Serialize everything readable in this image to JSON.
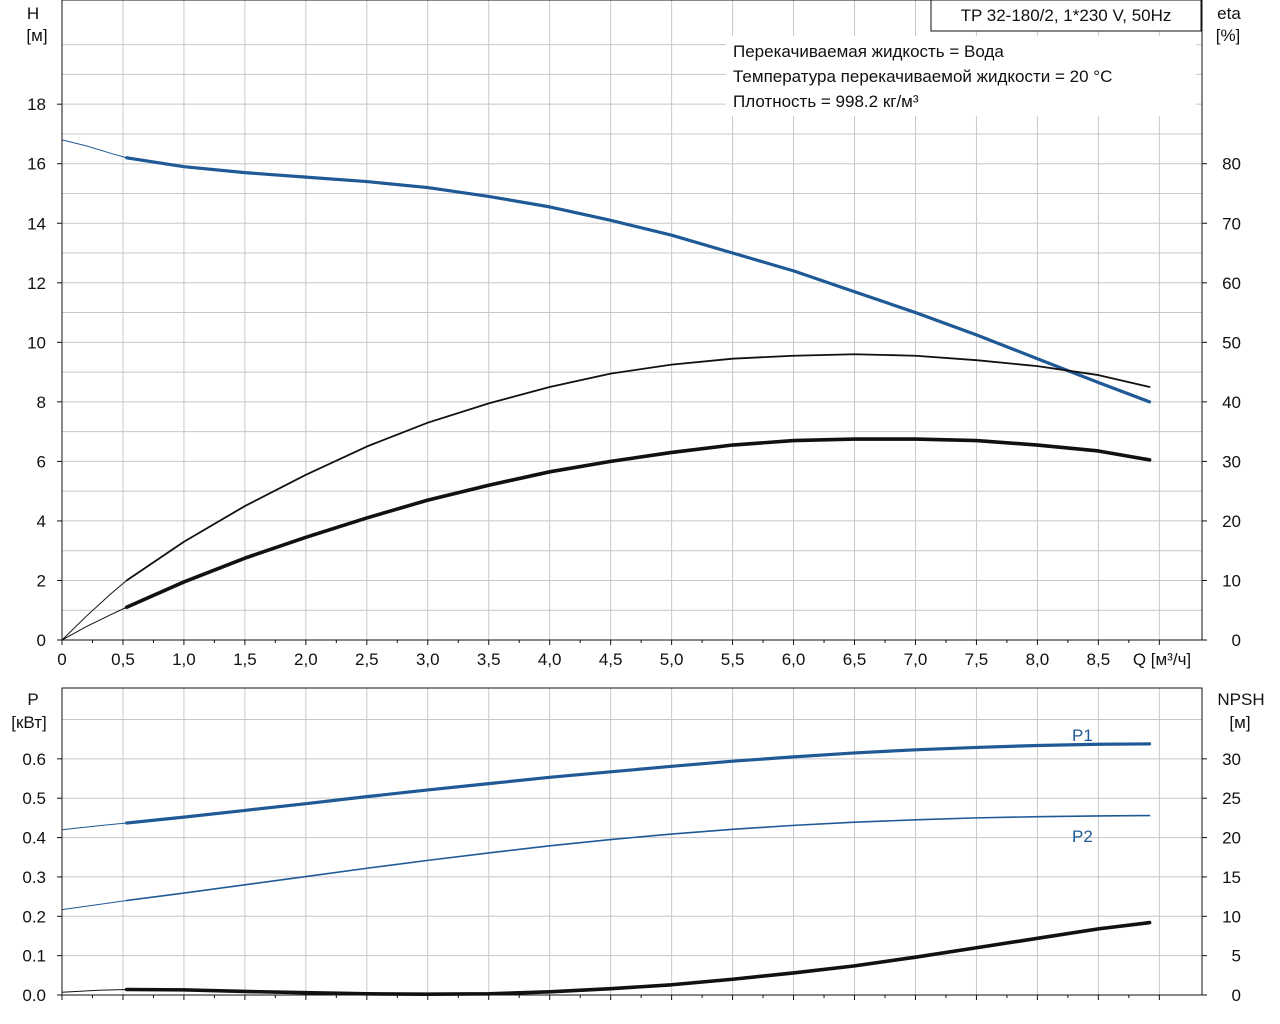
{
  "header": {
    "model": "TP 32-180/2, 1*230 V, 50Hz",
    "notes": [
      "Перекачиваемая жидкость = Вода",
      "Температура перекачиваемой жидкости = 20 °C",
      "Плотность = 998.2 кг/м³"
    ]
  },
  "chart_data": [
    {
      "type": "line",
      "panel": "top",
      "xlabel": "Q [м³/ч]",
      "ylabel_left": [
        "H",
        "[м]"
      ],
      "ylabel_right": [
        "eta",
        "[%]"
      ],
      "xlim": [
        0,
        9.35
      ],
      "ylim_left": [
        0,
        21.5
      ],
      "ylim_right": [
        0,
        107.5
      ],
      "x_ticks": [
        0,
        0.5,
        1,
        1.5,
        2,
        2.5,
        3,
        3.5,
        4,
        4.5,
        5,
        5.5,
        6,
        6.5,
        7,
        7.5,
        8,
        8.5
      ],
      "x_tick_labels": [
        "0",
        "0,5",
        "1,0",
        "1,5",
        "2,0",
        "2,5",
        "3,0",
        "3,5",
        "4,0",
        "4,5",
        "5,0",
        "5,5",
        "6,0",
        "6,5",
        "7,0",
        "7,5",
        "8,0",
        "8,5"
      ],
      "y_left_ticks": [
        0,
        2,
        4,
        6,
        8,
        10,
        12,
        14,
        16,
        18
      ],
      "y_right_ticks": [
        0,
        10,
        20,
        30,
        40,
        50,
        60,
        70,
        80
      ],
      "grid": true,
      "series": [
        {
          "axis": "left",
          "color": "#1f5a96",
          "width": 3.2,
          "x": [
            0.53,
            1,
            1.5,
            2,
            2.5,
            3,
            3.5,
            4,
            4.5,
            5,
            5.5,
            6,
            6.5,
            7,
            7.5,
            8,
            8.5,
            8.92
          ],
          "y": [
            16.2,
            15.9,
            15.7,
            15.55,
            15.4,
            15.2,
            14.9,
            14.55,
            14.1,
            13.6,
            13.0,
            12.4,
            11.7,
            11.0,
            10.25,
            9.45,
            8.65,
            8.0
          ],
          "extension": {
            "x": [
              0,
              0.2,
              0.4,
              0.53
            ],
            "y": [
              16.8,
              16.6,
              16.35,
              16.2
            ]
          }
        },
        {
          "axis": "left",
          "color": "#111111",
          "width": 1.8,
          "x": [
            0.53,
            1,
            1.5,
            2,
            2.5,
            3,
            3.5,
            4,
            4.5,
            5,
            5.5,
            6,
            6.5,
            7,
            7.5,
            8,
            8.5,
            8.92
          ],
          "y": [
            2.0,
            3.3,
            4.5,
            5.55,
            6.5,
            7.3,
            7.95,
            8.5,
            8.95,
            9.25,
            9.45,
            9.55,
            9.6,
            9.55,
            9.4,
            9.2,
            8.9,
            8.5
          ],
          "extension": {
            "x": [
              0,
              0.2,
              0.4,
              0.53
            ],
            "y": [
              0,
              0.8,
              1.55,
              2.0
            ]
          }
        },
        {
          "axis": "left",
          "color": "#111111",
          "width": 3.6,
          "x": [
            0.53,
            1,
            1.5,
            2,
            2.5,
            3,
            3.5,
            4,
            4.5,
            5,
            5.5,
            6,
            6.5,
            7,
            7.5,
            8,
            8.5,
            8.92
          ],
          "y": [
            1.1,
            1.95,
            2.75,
            3.45,
            4.1,
            4.7,
            5.2,
            5.65,
            6.0,
            6.3,
            6.55,
            6.7,
            6.75,
            6.75,
            6.7,
            6.55,
            6.35,
            6.05
          ],
          "extension": {
            "x": [
              0,
              0.2,
              0.4,
              0.53
            ],
            "y": [
              0,
              0.45,
              0.85,
              1.1
            ]
          }
        }
      ]
    },
    {
      "type": "line",
      "panel": "bottom",
      "ylabel_left": [
        "P",
        "[кВт]"
      ],
      "ylabel_right": [
        "NPSH",
        "[м]"
      ],
      "xlim": [
        0,
        9.35
      ],
      "ylim_left": [
        0,
        0.78
      ],
      "ylim_right": [
        0,
        39
      ],
      "x_ticks": [
        0,
        0.5,
        1,
        1.5,
        2,
        2.5,
        3,
        3.5,
        4,
        4.5,
        5,
        5.5,
        6,
        6.5,
        7,
        7.5,
        8,
        8.5
      ],
      "y_left_ticks": [
        0,
        0.1,
        0.2,
        0.3,
        0.4,
        0.5,
        0.6
      ],
      "y_left_tick_labels": [
        "0.0",
        "0.1",
        "0.2",
        "0.3",
        "0.4",
        "0.5",
        "0.6"
      ],
      "y_right_ticks": [
        0,
        5,
        10,
        15,
        20,
        25,
        30
      ],
      "grid": true,
      "series": [
        {
          "name": "P1",
          "axis": "left",
          "color": "#1f5a96",
          "width": 3.2,
          "x": [
            0.53,
            1,
            1.5,
            2,
            2.5,
            3,
            3.5,
            4,
            4.5,
            5,
            5.5,
            6,
            6.5,
            7,
            7.5,
            8,
            8.5,
            8.92
          ],
          "y": [
            0.437,
            0.452,
            0.469,
            0.486,
            0.504,
            0.521,
            0.537,
            0.553,
            0.567,
            0.581,
            0.594,
            0.605,
            0.615,
            0.623,
            0.629,
            0.634,
            0.637,
            0.638
          ],
          "extension": {
            "x": [
              0,
              0.3,
              0.53
            ],
            "y": [
              0.42,
              0.43,
              0.437
            ]
          }
        },
        {
          "name": "P2",
          "axis": "left",
          "color": "#1f5a96",
          "width": 1.6,
          "x": [
            0.53,
            1,
            1.5,
            2,
            2.5,
            3,
            3.5,
            4,
            4.5,
            5,
            5.5,
            6,
            6.5,
            7,
            7.5,
            8,
            8.5,
            8.92
          ],
          "y": [
            0.24,
            0.259,
            0.28,
            0.301,
            0.322,
            0.342,
            0.361,
            0.379,
            0.395,
            0.409,
            0.421,
            0.431,
            0.439,
            0.445,
            0.45,
            0.453,
            0.455,
            0.456
          ],
          "extension": {
            "x": [
              0,
              0.3,
              0.53
            ],
            "y": [
              0.217,
              0.23,
              0.24
            ]
          }
        },
        {
          "name": "NPSH",
          "axis": "right",
          "color": "#111111",
          "width": 3.6,
          "x": [
            0.53,
            1,
            1.5,
            2,
            2.5,
            3,
            3.5,
            4,
            4.5,
            5,
            5.5,
            6,
            6.5,
            7,
            7.5,
            8,
            8.5,
            8.92
          ],
          "y": [
            0.7,
            0.65,
            0.45,
            0.3,
            0.15,
            0.1,
            0.15,
            0.4,
            0.8,
            1.3,
            2.0,
            2.8,
            3.7,
            4.8,
            6.0,
            7.2,
            8.4,
            9.2
          ],
          "extension": {
            "x": [
              0,
              0.3,
              0.53
            ],
            "y": [
              0.35,
              0.6,
              0.7
            ]
          }
        }
      ]
    }
  ]
}
